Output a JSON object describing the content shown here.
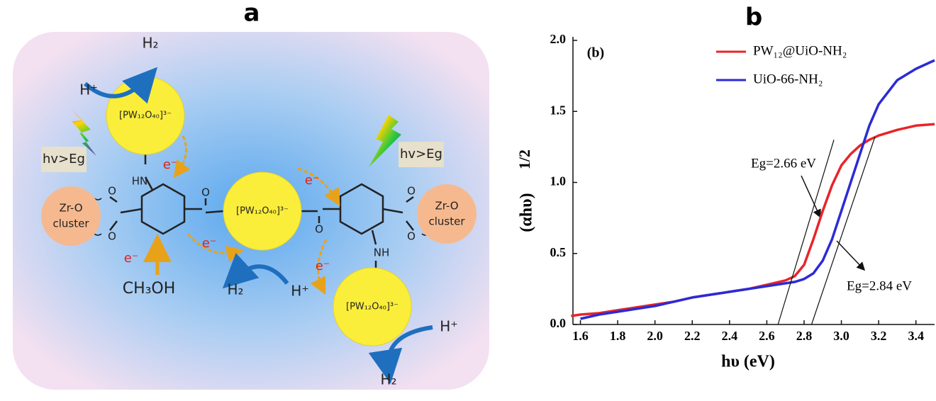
{
  "diagram": {
    "label": "a",
    "polyoxometalates": [
      "[PW₁₂O₄₀]³⁻",
      "[PW₁₂O₄₀]³⁻",
      "[PW₁₂O₄₀]³⁻"
    ],
    "light": [
      "hv>Eg",
      "hv>Eg"
    ],
    "clusters": [
      [
        "Zr-O",
        "cluster"
      ],
      [
        "Zr-O",
        "cluster"
      ]
    ],
    "amines": [
      "HN",
      "NH"
    ],
    "oxygens": [
      "O",
      "O",
      "O",
      "O",
      "O",
      "O"
    ],
    "electrons": [
      "e⁻",
      "e⁻",
      "e⁻",
      "e⁻",
      "e⁻"
    ],
    "sacrificial_agent": "CH₃OH",
    "protons": [
      "H⁺",
      "H⁺",
      "H⁺"
    ],
    "hydrogen": [
      "H₂",
      "H₂",
      "H₂"
    ]
  },
  "chart_data": {
    "type": "line",
    "title": "b",
    "panel_label": "(b)",
    "xlabel": "hυ (eV)",
    "ylabel": "(αhυ)",
    "ylabel_exponent": "1/2",
    "x": [
      1.55,
      1.6,
      1.7,
      1.8,
      1.9,
      2.0,
      2.1,
      2.2,
      2.3,
      2.4,
      2.5,
      2.6,
      2.7,
      2.75,
      2.8,
      2.85,
      2.9,
      2.95,
      3.0,
      3.05,
      3.1,
      3.15,
      3.2,
      3.3,
      3.4,
      3.5
    ],
    "series": [
      {
        "name": "PW₁₂@UiO-NH₂",
        "color": "#e8242a",
        "values": [
          0.06,
          0.07,
          0.08,
          0.1,
          0.12,
          0.14,
          0.16,
          0.19,
          0.21,
          0.23,
          0.25,
          0.28,
          0.31,
          0.34,
          0.42,
          0.6,
          0.8,
          0.98,
          1.12,
          1.2,
          1.26,
          1.3,
          1.33,
          1.37,
          1.4,
          1.41
        ]
      },
      {
        "name": "UiO-66-NH₂",
        "color": "#2b2bd6",
        "values": [
          null,
          0.04,
          0.07,
          0.09,
          0.11,
          0.13,
          0.16,
          0.19,
          0.21,
          0.23,
          0.25,
          0.27,
          0.29,
          0.3,
          0.32,
          0.36,
          0.45,
          0.6,
          0.8,
          1.0,
          1.2,
          1.4,
          1.55,
          1.72,
          1.8,
          1.86
        ]
      }
    ],
    "fit_lines": [
      {
        "color": "#111111",
        "x": [
          2.66,
          2.96
        ],
        "y": [
          0,
          1.3
        ]
      },
      {
        "color": "#111111",
        "x": [
          2.84,
          3.18
        ],
        "y": [
          0,
          1.32
        ]
      }
    ],
    "annotations": [
      "Eg=2.66 eV",
      "Eg=2.84 eV"
    ],
    "xlim": [
      1.56,
      3.5
    ],
    "ylim": [
      0,
      2
    ],
    "xticks": [
      1.6,
      1.8,
      {
        "value": 2,
        "label": "2.0"
      },
      2.2,
      2.4,
      2.6,
      2.8,
      {
        "value": 3,
        "label": "3.0"
      },
      3.2,
      3.4
    ],
    "yticks": [
      {
        "value": 0,
        "label": "0.0"
      },
      0.5,
      {
        "value": 1,
        "label": "1.0"
      },
      1.5,
      {
        "value": 2,
        "label": "2.0"
      }
    ],
    "legend": "upper right",
    "grid": false
  }
}
